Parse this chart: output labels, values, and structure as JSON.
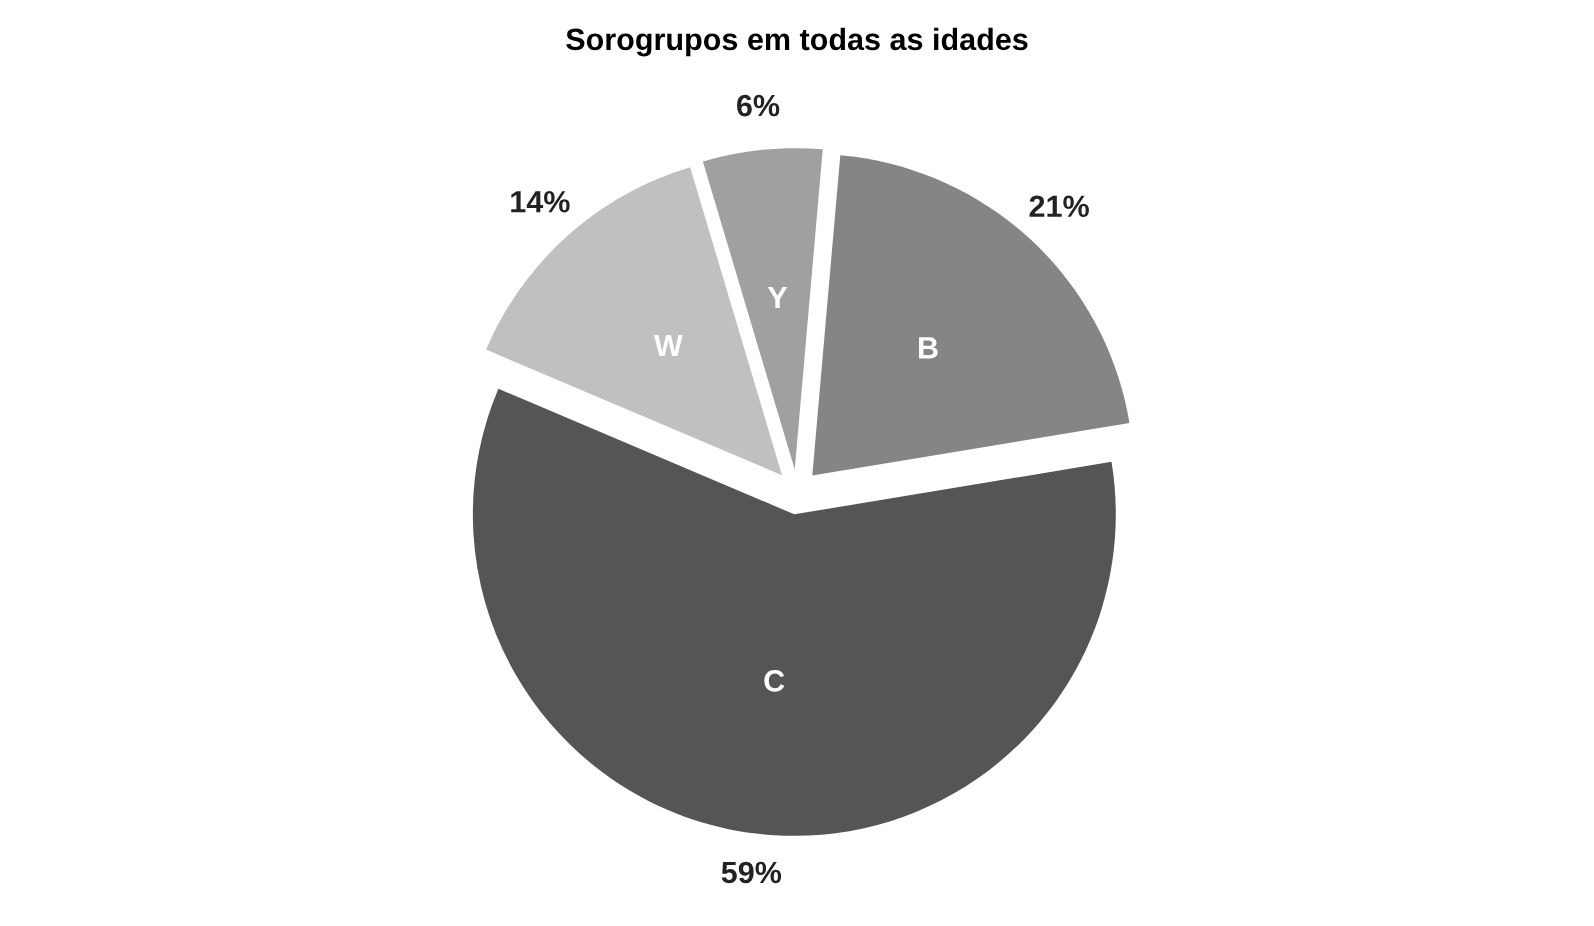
{
  "chart_data": {
    "type": "pie",
    "title": "Sorogrupos em todas as idades",
    "categories": [
      "B",
      "C",
      "W",
      "Y"
    ],
    "values": [
      21,
      59,
      14,
      6
    ],
    "colors": [
      "#858585",
      "#555555",
      "#c0c0c0",
      "#a0a0a0"
    ],
    "value_labels": [
      "21%",
      "59%",
      "14%",
      "6%"
    ]
  }
}
